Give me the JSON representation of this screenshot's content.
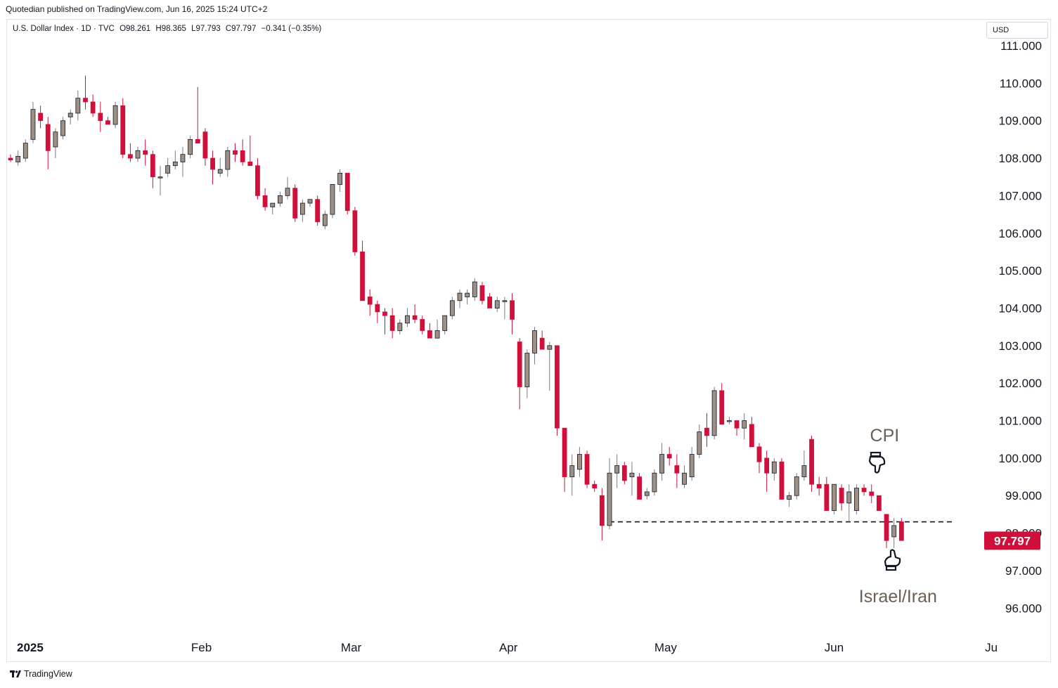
{
  "header": {
    "published_text": "Quotedian published on TradingView.com, Jun 16, 2025 15:24 UTC+2"
  },
  "legend": {
    "symbol": "U.S. Dollar Index · 1D · TVC",
    "open": "O98.261",
    "high": "H98.365",
    "low": "L97.793",
    "close": "C97.797",
    "change": "−0.341 (−0.35%)"
  },
  "currency_label": "USD",
  "footer": {
    "brand": "TradingView"
  },
  "colors": {
    "up": "#9e9085",
    "down": "#d0103a",
    "wick_up": "#787b86",
    "annotation": "#6b5e52"
  },
  "chart_data": {
    "type": "candlestick",
    "ylim": [
      95.5,
      111.5
    ],
    "y_ticks": [
      "96.000",
      "97.000",
      "98.000",
      "99.000",
      "100.000",
      "101.000",
      "102.000",
      "103.000",
      "104.000",
      "105.000",
      "106.000",
      "107.000",
      "108.000",
      "109.000",
      "110.000",
      "111.000"
    ],
    "x_ticks": [
      {
        "label": "2025",
        "index": 1.2
      },
      {
        "label": "Feb",
        "index": 25.5
      },
      {
        "label": "Mar",
        "index": 45.5
      },
      {
        "label": "Apr",
        "index": 66.5
      },
      {
        "label": "May",
        "index": 87.5
      },
      {
        "label": "Jun",
        "index": 110
      },
      {
        "label": "Ju",
        "index": 131
      }
    ],
    "last_price": "97.797",
    "support_level": 98.3,
    "annotations": [
      {
        "text": "CPI",
        "index": 117.5,
        "y": 100.65
      },
      {
        "text": "Israel/Iran",
        "index": 119,
        "y": 95.8
      }
    ],
    "ohlc": [
      [
        108.0,
        108.1,
        107.9,
        107.95
      ],
      [
        107.9,
        108.2,
        107.8,
        108.05
      ],
      [
        108.0,
        108.5,
        107.9,
        108.4
      ],
      [
        108.5,
        109.5,
        108.4,
        109.3
      ],
      [
        109.2,
        109.4,
        108.8,
        109.0
      ],
      [
        108.9,
        109.1,
        107.7,
        108.2
      ],
      [
        108.3,
        108.8,
        108.0,
        108.7
      ],
      [
        108.6,
        109.1,
        108.5,
        109.0
      ],
      [
        109.1,
        109.3,
        108.9,
        109.2
      ],
      [
        109.2,
        109.8,
        109.0,
        109.6
      ],
      [
        109.6,
        110.2,
        109.3,
        109.5
      ],
      [
        109.5,
        109.7,
        109.1,
        109.2
      ],
      [
        109.2,
        109.5,
        108.7,
        109.0
      ],
      [
        109.0,
        109.1,
        108.9,
        108.9
      ],
      [
        108.9,
        109.5,
        108.8,
        109.4
      ],
      [
        109.4,
        109.6,
        108.0,
        108.1
      ],
      [
        108.1,
        108.4,
        107.9,
        108.0
      ],
      [
        108.0,
        108.3,
        107.9,
        108.2
      ],
      [
        108.2,
        108.5,
        107.8,
        108.1
      ],
      [
        108.1,
        108.2,
        107.2,
        107.5
      ],
      [
        107.5,
        107.8,
        107.0,
        107.5
      ],
      [
        107.6,
        108.0,
        107.5,
        107.8
      ],
      [
        107.8,
        108.2,
        107.7,
        107.9
      ],
      [
        107.9,
        108.3,
        107.5,
        108.1
      ],
      [
        108.1,
        108.6,
        108.0,
        108.5
      ],
      [
        108.5,
        109.9,
        108.4,
        108.4
      ],
      [
        108.7,
        108.8,
        107.8,
        108.0
      ],
      [
        108.0,
        108.2,
        107.3,
        107.7
      ],
      [
        107.6,
        108.0,
        107.5,
        107.7
      ],
      [
        107.7,
        108.3,
        107.5,
        108.2
      ],
      [
        108.2,
        108.4,
        107.9,
        108.1
      ],
      [
        108.2,
        108.5,
        107.8,
        107.9
      ],
      [
        107.9,
        108.6,
        107.8,
        107.8
      ],
      [
        107.8,
        108.0,
        106.9,
        107.0
      ],
      [
        107.0,
        107.2,
        106.6,
        106.7
      ],
      [
        106.7,
        106.8,
        106.5,
        106.8
      ],
      [
        106.8,
        107.1,
        106.7,
        107.0
      ],
      [
        107.0,
        107.5,
        106.9,
        107.2
      ],
      [
        107.2,
        107.3,
        106.3,
        106.4
      ],
      [
        106.5,
        106.9,
        106.3,
        106.8
      ],
      [
        106.8,
        106.9,
        106.7,
        106.9
      ],
      [
        106.9,
        107.0,
        106.2,
        106.3
      ],
      [
        106.2,
        106.6,
        106.1,
        106.5
      ],
      [
        106.5,
        107.3,
        106.4,
        107.3
      ],
      [
        107.3,
        107.7,
        107.1,
        107.6
      ],
      [
        107.6,
        107.6,
        106.5,
        106.6
      ],
      [
        106.6,
        106.7,
        105.4,
        105.5
      ],
      [
        105.5,
        105.8,
        104.2,
        104.2
      ],
      [
        104.3,
        104.5,
        103.8,
        104.1
      ],
      [
        104.1,
        104.2,
        103.6,
        103.9
      ],
      [
        103.9,
        104.0,
        103.3,
        103.8
      ],
      [
        103.8,
        104.0,
        103.2,
        103.4
      ],
      [
        103.4,
        103.7,
        103.3,
        103.6
      ],
      [
        103.6,
        104.0,
        103.5,
        103.8
      ],
      [
        103.8,
        104.1,
        103.6,
        103.7
      ],
      [
        103.7,
        103.8,
        103.3,
        103.4
      ],
      [
        103.4,
        103.6,
        103.2,
        103.2
      ],
      [
        103.2,
        103.7,
        103.2,
        103.4
      ],
      [
        103.4,
        103.8,
        103.3,
        103.8
      ],
      [
        103.8,
        104.3,
        103.7,
        104.2
      ],
      [
        104.2,
        104.5,
        104.0,
        104.4
      ],
      [
        104.3,
        104.5,
        104.1,
        104.4
      ],
      [
        104.3,
        104.8,
        104.2,
        104.7
      ],
      [
        104.6,
        104.7,
        104.1,
        104.2
      ],
      [
        104.3,
        104.4,
        104.0,
        104.0
      ],
      [
        104.0,
        104.3,
        103.9,
        104.2
      ],
      [
        104.2,
        104.3,
        103.7,
        104.2
      ],
      [
        104.2,
        104.4,
        103.3,
        103.7
      ],
      [
        103.1,
        103.2,
        101.3,
        101.9
      ],
      [
        101.9,
        102.9,
        101.6,
        102.8
      ],
      [
        102.8,
        103.5,
        102.5,
        103.4
      ],
      [
        103.2,
        103.4,
        102.9,
        102.9
      ],
      [
        102.9,
        103.1,
        101.8,
        103.0
      ],
      [
        103.0,
        103.0,
        100.6,
        100.8
      ],
      [
        100.8,
        100.8,
        99.1,
        99.5
      ],
      [
        99.5,
        100.1,
        99.0,
        99.8
      ],
      [
        99.7,
        100.3,
        99.5,
        100.1
      ],
      [
        100.1,
        100.2,
        99.2,
        99.3
      ],
      [
        99.3,
        99.4,
        99.1,
        99.2
      ],
      [
        99.0,
        99.2,
        97.8,
        98.2
      ],
      [
        98.2,
        100.0,
        98.1,
        99.6
      ],
      [
        99.6,
        100.1,
        99.2,
        99.8
      ],
      [
        99.8,
        99.9,
        99.3,
        99.4
      ],
      [
        99.5,
        99.9,
        99.0,
        99.6
      ],
      [
        99.5,
        99.6,
        98.9,
        98.9
      ],
      [
        99.0,
        99.2,
        98.9,
        99.1
      ],
      [
        99.1,
        99.7,
        99.0,
        99.6
      ],
      [
        99.6,
        100.4,
        99.4,
        100.1
      ],
      [
        100.1,
        100.3,
        99.8,
        100.0
      ],
      [
        99.8,
        100.1,
        99.2,
        99.6
      ],
      [
        99.3,
        99.8,
        99.2,
        99.6
      ],
      [
        99.5,
        100.3,
        99.4,
        100.1
      ],
      [
        100.1,
        100.9,
        100.0,
        100.7
      ],
      [
        100.8,
        101.2,
        100.3,
        100.6
      ],
      [
        100.6,
        101.9,
        100.5,
        101.8
      ],
      [
        101.8,
        102.0,
        100.9,
        100.9
      ],
      [
        101.0,
        101.1,
        100.9,
        101.0
      ],
      [
        101.0,
        101.0,
        100.6,
        100.8
      ],
      [
        100.8,
        101.2,
        100.5,
        101.0
      ],
      [
        100.9,
        101.1,
        100.3,
        100.3
      ],
      [
        100.3,
        100.4,
        99.6,
        99.9
      ],
      [
        100.0,
        100.2,
        99.1,
        99.6
      ],
      [
        99.6,
        100.0,
        99.4,
        99.9
      ],
      [
        99.9,
        100.0,
        98.9,
        98.9
      ],
      [
        98.9,
        99.1,
        98.7,
        99.0
      ],
      [
        99.0,
        99.6,
        98.9,
        99.5
      ],
      [
        99.5,
        100.2,
        99.4,
        99.8
      ],
      [
        100.5,
        100.6,
        99.1,
        99.3
      ],
      [
        99.3,
        99.5,
        99.0,
        99.2
      ],
      [
        99.3,
        99.5,
        98.6,
        98.6
      ],
      [
        98.6,
        99.3,
        98.5,
        99.3
      ],
      [
        99.2,
        99.3,
        98.6,
        98.8
      ],
      [
        98.8,
        99.3,
        98.3,
        99.1
      ],
      [
        98.6,
        99.3,
        98.5,
        99.2
      ],
      [
        99.2,
        99.3,
        99.0,
        99.1
      ],
      [
        99.1,
        99.3,
        98.8,
        99.0
      ],
      [
        99.0,
        99.0,
        98.6,
        98.6
      ],
      [
        98.5,
        98.5,
        97.6,
        97.8
      ],
      [
        97.9,
        98.4,
        97.6,
        98.2
      ],
      [
        98.3,
        98.4,
        97.8,
        97.8
      ]
    ]
  }
}
